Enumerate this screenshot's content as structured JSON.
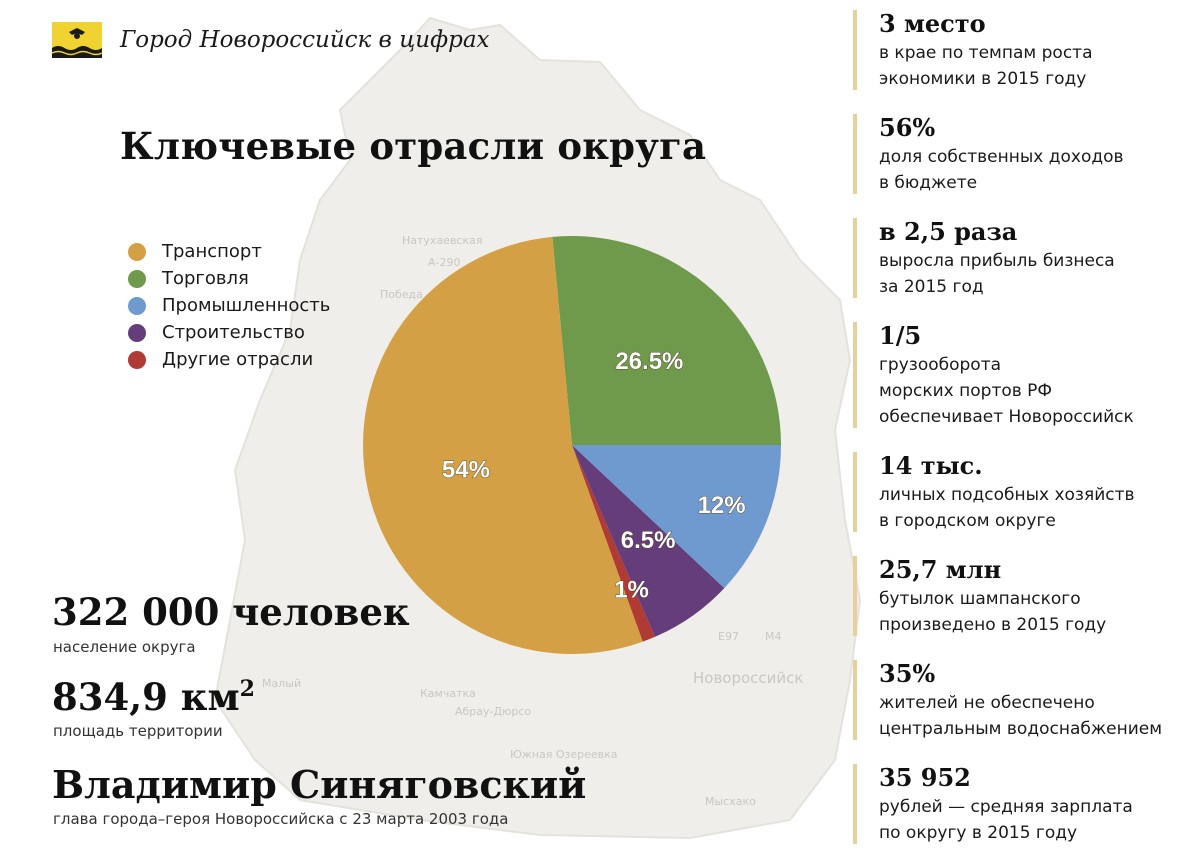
{
  "header": {
    "title": "Город Новороссийск в цифрах"
  },
  "map_labels": [
    "Натухаевская",
    "А-290",
    "Победа",
    "Новороссийск",
    "Камчатка",
    "Абрау-Дюрсо",
    "Южная Озереевка",
    "Мысхако",
    "Малый",
    "Е97",
    "М4"
  ],
  "chart_data": {
    "type": "pie",
    "title": "Ключевые отрасли округа",
    "legend_position": "left",
    "slices": [
      {
        "name": "Транспорт",
        "value": 54,
        "label": "54%",
        "color": "#d4a045"
      },
      {
        "name": "Торговля",
        "value": 26.5,
        "label": "26.5%",
        "color": "#6f9a4c"
      },
      {
        "name": "Промышленность",
        "value": 12,
        "label": "12%",
        "color": "#6f9ad0"
      },
      {
        "name": "Строительство",
        "value": 6.5,
        "label": "6.5%",
        "color": "#663d7b"
      },
      {
        "name": "Другие отрасли",
        "value": 1,
        "label": "1%",
        "color": "#b03a34"
      }
    ]
  },
  "stats": {
    "population_value": "322 000 человек",
    "population_label": "население округа",
    "area_value": "834,9 км",
    "area_exp": "2",
    "area_label": "площадь территории",
    "mayor_name": "Владимир Синяговский",
    "mayor_caption": "глава города–героя Новороссийска с 23 марта 2003 года"
  },
  "facts": [
    {
      "value": "3 место",
      "text": "в крае по темпам роста\nэкономики в 2015 году"
    },
    {
      "value": "56%",
      "text": "доля собственных доходов\nв бюджете"
    },
    {
      "value": "в 2,5 раза",
      "text": "выросла прибыль бизнеса\nза 2015 год"
    },
    {
      "value": "1/5",
      "text": "грузооборота\nморских портов РФ\nобеспечивает Новороссийск"
    },
    {
      "value": "14 тыс.",
      "text": "личных подсобных хозяйств\nв городском округе"
    },
    {
      "value": "25,7 млн",
      "text": "бутылок шампанского\nпроизведено в 2015 году"
    },
    {
      "value": "35%",
      "text": "жителей не обеспечено\nцентральным водоснабжением"
    },
    {
      "value": "35 952",
      "text": "рублей — средняя зарплата\nпо округу в 2015 году"
    }
  ],
  "colors": {
    "accent_bar": "#e9cf9a",
    "flag_yellow": "#f0d230",
    "map_fill": "#efeeea"
  }
}
